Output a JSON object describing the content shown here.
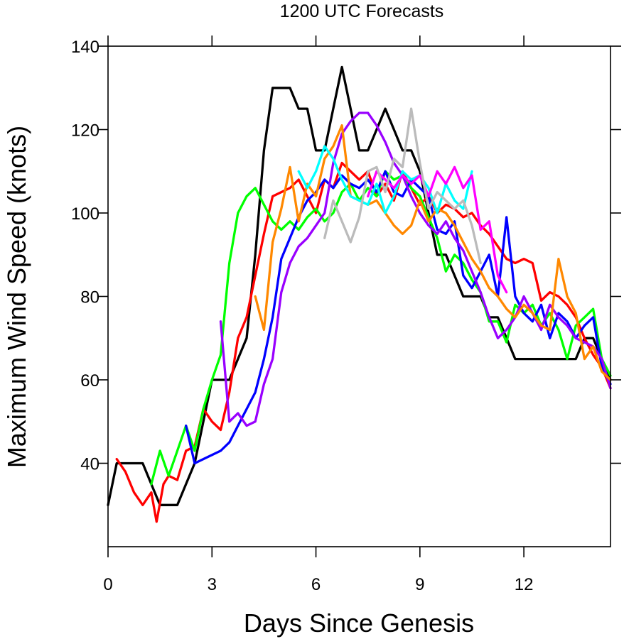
{
  "chart_data": {
    "type": "line",
    "title": "1200 UTC Forecasts",
    "xlabel": "Days Since Genesis",
    "ylabel": "Maximum Wind Speed (knots)",
    "xlim": [
      0,
      14.5
    ],
    "ylim": [
      20,
      140
    ],
    "xticks": [
      0,
      3,
      6,
      9,
      12
    ],
    "yticks": [
      40,
      60,
      80,
      100,
      120,
      140
    ],
    "xtick_labels": [
      "0",
      "3",
      "6",
      "9",
      "12"
    ],
    "ytick_labels": [
      "40",
      "60",
      "80",
      "100",
      "120",
      "140"
    ],
    "grid": false,
    "series": [
      {
        "color": "#000000",
        "x": [
          0,
          0.25,
          0.5,
          0.75,
          1.0,
          1.25,
          1.5,
          1.75,
          2.0,
          2.25,
          2.5,
          2.75,
          3.0,
          3.25,
          3.5,
          3.75,
          4.0,
          4.25,
          4.5,
          4.75,
          5.0,
          5.25,
          5.5,
          5.75,
          6.0,
          6.25,
          6.5,
          6.75,
          7.0,
          7.25,
          7.5,
          7.75,
          8.0,
          8.25,
          8.5,
          8.75,
          9.0,
          9.25,
          9.5,
          9.75,
          10.0,
          10.25,
          10.5,
          10.75,
          11.0,
          11.25,
          11.5,
          11.75,
          12.0,
          12.25,
          12.5,
          12.75,
          13.0,
          13.25,
          13.5,
          13.75,
          14.0,
          14.25,
          14.5
        ],
        "y": [
          30,
          40,
          40,
          40,
          40,
          35,
          30,
          30,
          30,
          35,
          40,
          50,
          60,
          60,
          60,
          65,
          70,
          90,
          115,
          130,
          130,
          130,
          125,
          125,
          115,
          115,
          125,
          135,
          125,
          115,
          115,
          120,
          125,
          120,
          115,
          115,
          110,
          100,
          90,
          90,
          85,
          80,
          80,
          80,
          75,
          75,
          70,
          65,
          65,
          65,
          65,
          65,
          65,
          65,
          65,
          70,
          70,
          65,
          60
        ]
      },
      {
        "color": "#ff0000",
        "x": [
          0.25,
          0.5,
          0.75,
          1.0,
          1.25,
          1.4,
          1.6,
          1.75,
          2.0,
          2.25,
          2.5,
          2.75,
          3.0,
          3.25,
          3.5,
          3.75,
          4.0,
          4.25,
          4.5,
          4.75,
          5.0,
          5.25,
          5.5,
          5.75,
          6.0,
          6.25,
          6.5,
          6.75,
          7.0,
          7.25,
          7.5,
          7.75,
          8.0,
          8.25,
          8.5,
          8.75,
          9.0,
          9.25,
          9.5,
          9.75,
          10.0,
          10.25,
          10.5,
          10.75,
          11.0,
          11.25,
          11.5,
          11.75,
          12.0,
          12.25,
          12.5,
          12.75,
          13.0,
          13.25,
          13.5,
          13.75,
          14.0,
          14.25,
          14.5
        ],
        "y": [
          41,
          38,
          33,
          30,
          33,
          26,
          35,
          37,
          36,
          43,
          44,
          53,
          50,
          48,
          57,
          70,
          75,
          85,
          95,
          104,
          105,
          106,
          108,
          104,
          100,
          108,
          106,
          112,
          110,
          108,
          110,
          104,
          107,
          103,
          110,
          106,
          102,
          104,
          100,
          102,
          101,
          99,
          100,
          97,
          95,
          92,
          89,
          88,
          89,
          88,
          79,
          81,
          80,
          78,
          75,
          70,
          66,
          63,
          58
        ]
      },
      {
        "color": "#00ff00",
        "x": [
          1.25,
          1.5,
          1.75,
          2.0,
          2.25,
          2.5,
          2.75,
          3.0,
          3.25,
          3.5,
          3.75,
          4.0,
          4.25,
          4.5,
          4.75,
          5.0,
          5.25,
          5.5,
          5.75,
          6.0,
          6.25,
          6.5,
          6.75,
          7.0,
          7.25,
          7.5,
          7.75,
          8.0,
          8.25,
          8.5,
          8.75,
          9.0,
          9.25,
          9.5,
          9.75,
          10.0,
          10.25,
          10.5,
          10.75,
          11.0,
          11.25,
          11.5,
          11.75,
          12.0,
          12.25,
          12.5,
          12.75,
          13.0,
          13.25,
          13.5,
          13.75,
          14.0,
          14.25,
          14.5
        ],
        "y": [
          35,
          43,
          37,
          43,
          49,
          43,
          53,
          60,
          66,
          88,
          100,
          104,
          106,
          102,
          98,
          96,
          98,
          96,
          99,
          101,
          98,
          100,
          105,
          107,
          103,
          106,
          104,
          110,
          108,
          109,
          106,
          104,
          99,
          94,
          86,
          90,
          88,
          84,
          81,
          74,
          74,
          69,
          78,
          76,
          78,
          73,
          76,
          72,
          65,
          73,
          75,
          77,
          65,
          61
        ]
      },
      {
        "color": "#0000ff",
        "x": [
          2.25,
          2.5,
          2.75,
          3.0,
          3.25,
          3.5,
          3.75,
          4.0,
          4.25,
          4.5,
          4.75,
          5.0,
          5.25,
          5.5,
          5.75,
          6.0,
          6.25,
          6.5,
          6.75,
          7.0,
          7.25,
          7.5,
          7.75,
          8.0,
          8.25,
          8.5,
          8.75,
          9.0,
          9.25,
          9.5,
          9.75,
          10.0,
          10.25,
          10.5,
          10.75,
          11.0,
          11.25,
          11.5,
          11.75,
          12.0,
          12.25,
          12.5,
          12.75,
          13.0,
          13.25,
          13.5,
          13.75,
          14.0,
          14.25,
          14.5
        ],
        "y": [
          49,
          40,
          41,
          42,
          43,
          45,
          49,
          53,
          57,
          65,
          75,
          89,
          94,
          99,
          103,
          105,
          108,
          106,
          109,
          107,
          106,
          108,
          105,
          110,
          105,
          104,
          108,
          106,
          104,
          96,
          95,
          98,
          85,
          82,
          86,
          90,
          80,
          99,
          80,
          76,
          74,
          78,
          70,
          76,
          74,
          70,
          73,
          75,
          63,
          59
        ]
      },
      {
        "color": "#9900ff",
        "x": [
          3.25,
          3.5,
          3.75,
          4.0,
          4.25,
          4.5,
          4.75,
          5.0,
          5.25,
          5.5,
          5.75,
          6.0,
          6.25,
          6.5,
          6.75,
          7.0,
          7.25,
          7.5,
          7.75,
          8.0,
          8.25,
          8.5,
          8.75,
          9.0,
          9.25,
          9.5,
          9.75,
          10.0,
          10.25,
          10.5,
          10.75,
          11.0,
          11.25,
          11.5,
          11.75,
          12.0,
          12.25,
          12.5,
          12.75,
          13.0,
          13.25,
          13.5,
          13.75,
          14.0,
          14.25,
          14.5
        ],
        "y": [
          74,
          50,
          52,
          49,
          50,
          59,
          65,
          81,
          88,
          92,
          94,
          97,
          100,
          112,
          119,
          122,
          124,
          124,
          121,
          117,
          112,
          109,
          104,
          100,
          97,
          95,
          98,
          94,
          91,
          86,
          81,
          75,
          70,
          72,
          75,
          80,
          76,
          72,
          78,
          75,
          73,
          70,
          69,
          68,
          65,
          58
        ]
      },
      {
        "color": "#ff8800",
        "x": [
          4.25,
          4.5,
          4.75,
          5.0,
          5.25,
          5.5,
          5.75,
          6.0,
          6.25,
          6.5,
          6.75,
          7.0,
          7.25,
          7.5,
          7.75,
          8.0,
          8.25,
          8.5,
          8.75,
          9.0,
          9.25,
          9.5,
          9.75,
          10.0,
          10.25,
          10.5,
          10.75,
          11.0,
          11.25,
          11.5,
          11.75,
          12.0,
          12.25,
          12.5,
          12.75,
          13.0,
          13.25,
          13.5,
          13.75,
          14.0,
          14.25,
          14.5
        ],
        "y": [
          80,
          72,
          93,
          101,
          111,
          98,
          107,
          104,
          113,
          116,
          121,
          104,
          103,
          102,
          103,
          100,
          97,
          95,
          97,
          103,
          98,
          101,
          100,
          97,
          93,
          89,
          86,
          82,
          80,
          77,
          75,
          78,
          76,
          73,
          72,
          89,
          80,
          76,
          65,
          68,
          62,
          60
        ]
      },
      {
        "color": "#00ffff",
        "x": [
          5.5,
          5.75,
          6.0,
          6.25,
          6.5,
          6.75,
          7.0,
          7.25,
          7.5,
          7.75,
          8.0,
          8.25,
          8.5,
          8.75,
          9.0,
          9.25,
          9.5,
          9.75,
          10.0,
          10.25,
          10.5
        ],
        "y": [
          110,
          106,
          110,
          116,
          113,
          108,
          104,
          103,
          102,
          107,
          100,
          104,
          110,
          108,
          109,
          106,
          100,
          107,
          103,
          101,
          110
        ]
      },
      {
        "color": "#ff00ff",
        "x": [
          7.5,
          7.75,
          8.0,
          8.25,
          8.5,
          8.75,
          9.0,
          9.25,
          9.5,
          9.75,
          10.0,
          10.25,
          10.5,
          10.75,
          11.0,
          11.25,
          11.5
        ],
        "y": [
          104,
          110,
          108,
          106,
          109,
          107,
          109,
          104,
          110,
          107,
          111,
          106,
          109,
          96,
          98,
          85,
          81
        ]
      },
      {
        "color": "#bbbbbb",
        "x": [
          6.25,
          6.5,
          6.75,
          7.0,
          7.25,
          7.5,
          7.75,
          8.0,
          8.25,
          8.5,
          8.75,
          9.0,
          9.25,
          9.5,
          9.75,
          10.0,
          10.25,
          10.5,
          10.75
        ],
        "y": [
          94,
          103,
          98,
          93,
          99,
          110,
          111,
          105,
          113,
          111,
          125,
          112,
          101,
          105,
          103,
          101,
          103,
          97,
          88
        ]
      }
    ]
  }
}
